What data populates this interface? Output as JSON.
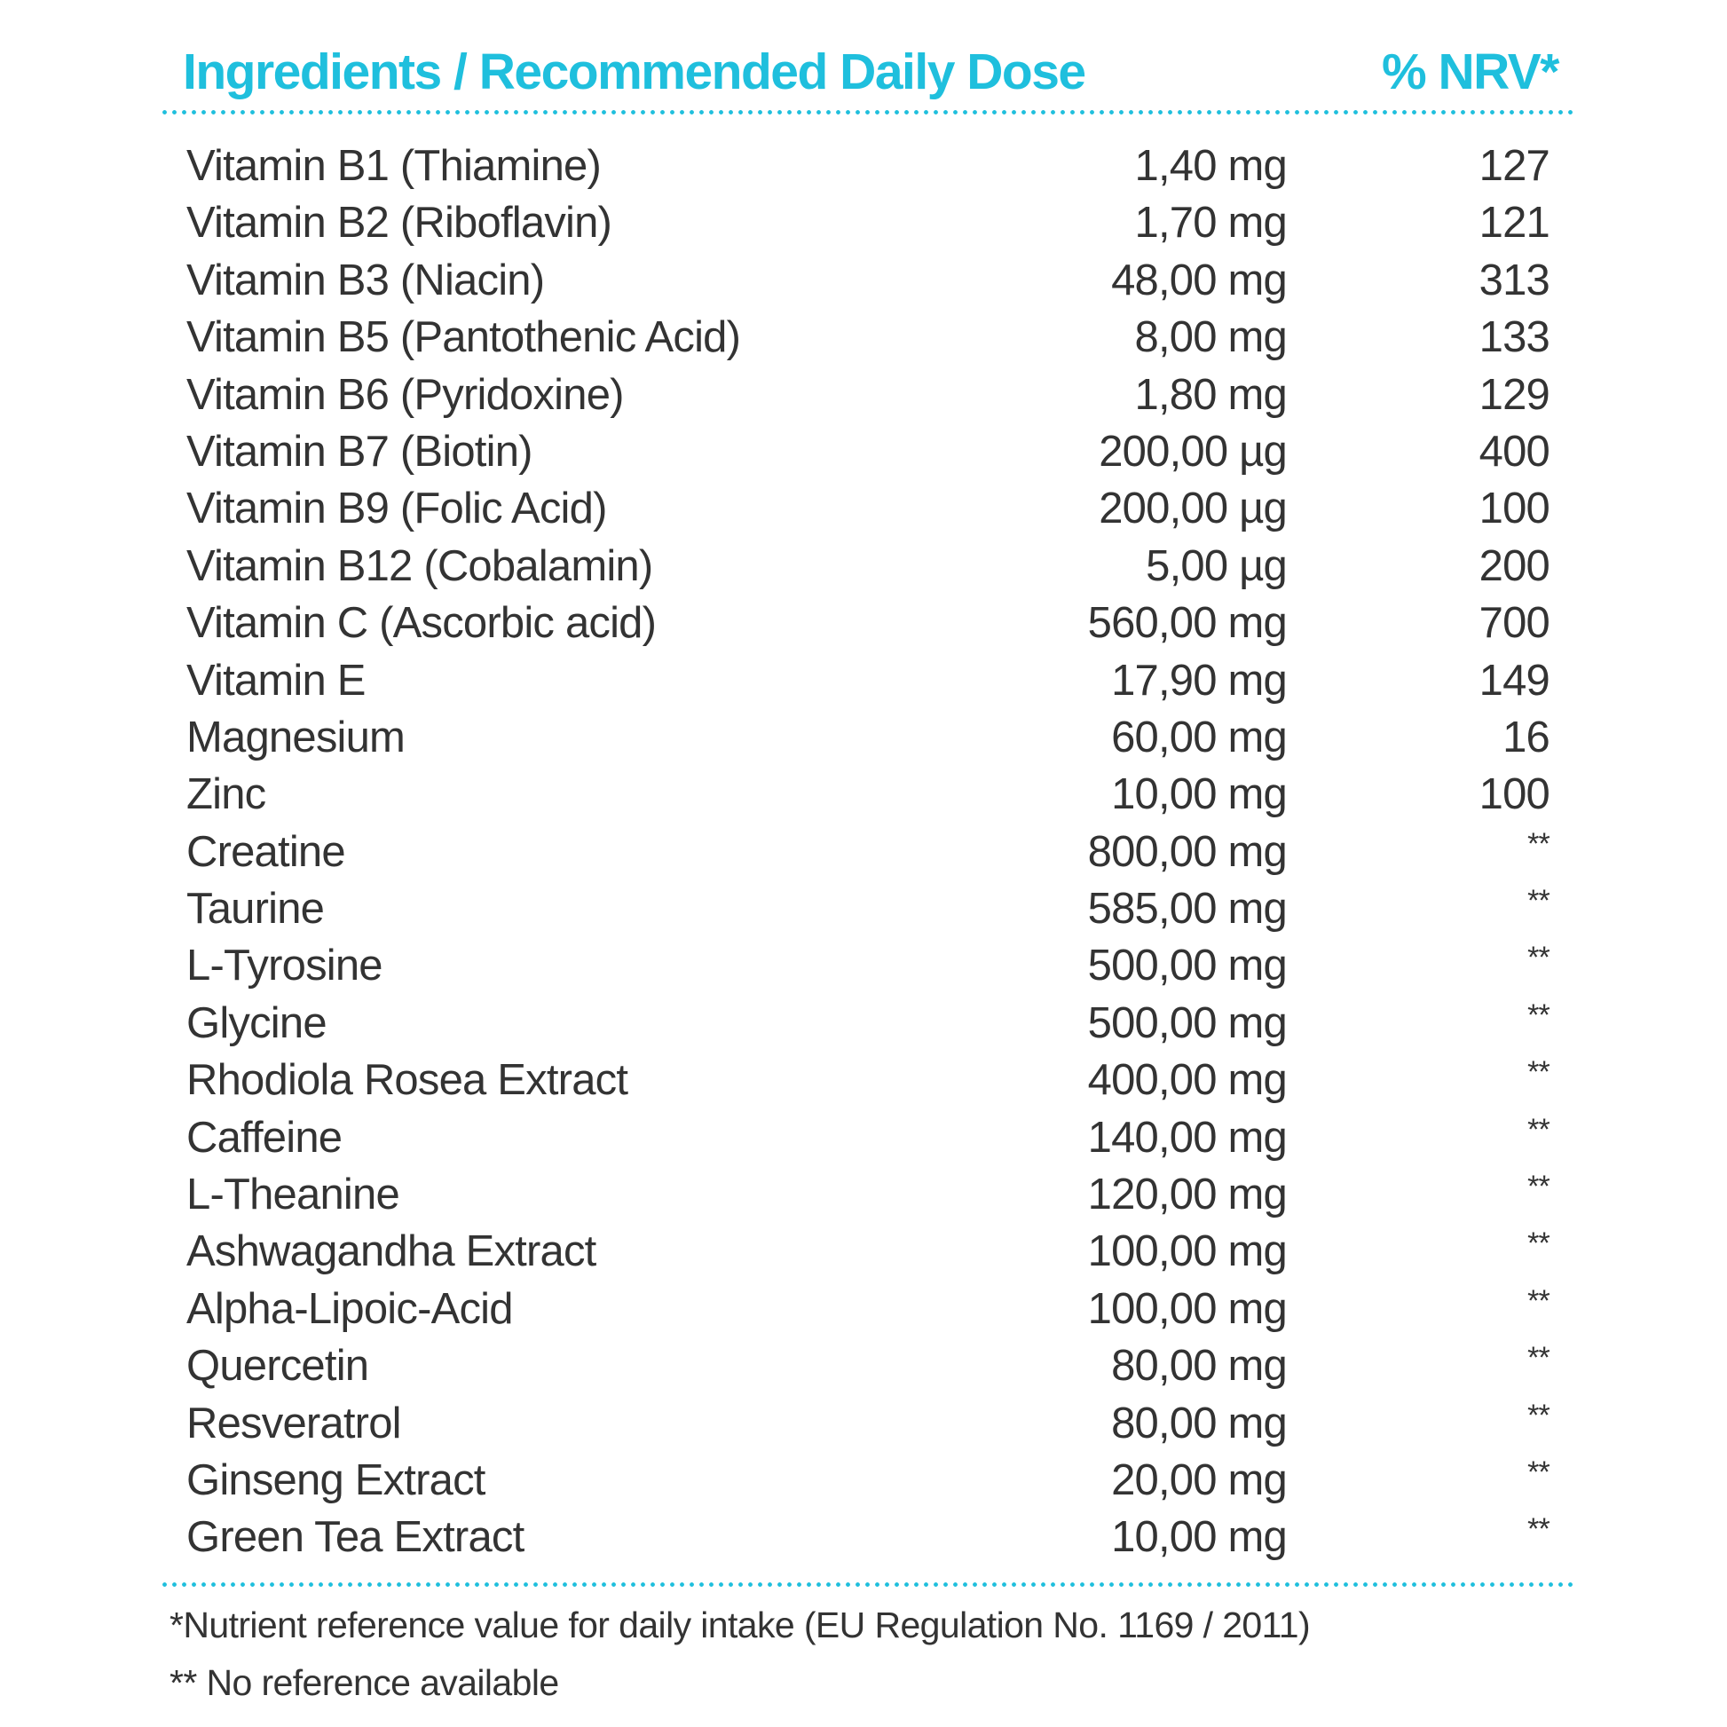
{
  "header": {
    "title": "Ingredients / Recommended Daily Dose",
    "nrv_label": "% NRV*"
  },
  "accent_color": "#1fbfdd",
  "rows": [
    {
      "name": "Vitamin B1 (Thiamine)",
      "dose": "1,40 mg",
      "nrv": "127"
    },
    {
      "name": "Vitamin B2 (Riboflavin)",
      "dose": "1,70 mg",
      "nrv": "121"
    },
    {
      "name": "Vitamin B3 (Niacin)",
      "dose": "48,00 mg",
      "nrv": "313"
    },
    {
      "name": "Vitamin B5 (Pantothenic Acid)",
      "dose": "8,00 mg",
      "nrv": "133"
    },
    {
      "name": "Vitamin B6 (Pyridoxine)",
      "dose": "1,80 mg",
      "nrv": "129"
    },
    {
      "name": "Vitamin B7 (Biotin)",
      "dose": "200,00 µg",
      "nrv": "400"
    },
    {
      "name": "Vitamin B9 (Folic Acid)",
      "dose": "200,00 µg",
      "nrv": "100"
    },
    {
      "name": "Vitamin B12 (Cobalamin)",
      "dose": "5,00 µg",
      "nrv": "200"
    },
    {
      "name": "Vitamin C (Ascorbic acid)",
      "dose": "560,00 mg",
      "nrv": "700"
    },
    {
      "name": "Vitamin E",
      "dose": "17,90 mg",
      "nrv": "149"
    },
    {
      "name": "Magnesium",
      "dose": "60,00 mg",
      "nrv": "16"
    },
    {
      "name": "Zinc",
      "dose": "10,00 mg",
      "nrv": "100"
    },
    {
      "name": "Creatine",
      "dose": "800,00 mg",
      "nrv": "**"
    },
    {
      "name": "Taurine",
      "dose": "585,00 mg",
      "nrv": "**"
    },
    {
      "name": "L-Tyrosine",
      "dose": "500,00 mg",
      "nrv": "**"
    },
    {
      "name": "Glycine",
      "dose": "500,00 mg",
      "nrv": "**"
    },
    {
      "name": "Rhodiola Rosea Extract",
      "dose": "400,00 mg",
      "nrv": "**"
    },
    {
      "name": "Caffeine",
      "dose": "140,00 mg",
      "nrv": "**"
    },
    {
      "name": "L-Theanine",
      "dose": "120,00 mg",
      "nrv": "**"
    },
    {
      "name": "Ashwagandha Extract",
      "dose": "100,00 mg",
      "nrv": "**"
    },
    {
      "name": "Alpha-Lipoic-Acid",
      "dose": "100,00 mg",
      "nrv": "**"
    },
    {
      "name": "Quercetin",
      "dose": "80,00 mg",
      "nrv": "**"
    },
    {
      "name": "Resveratrol",
      "dose": "80,00 mg",
      "nrv": "**"
    },
    {
      "name": "Ginseng Extract",
      "dose": "20,00 mg",
      "nrv": "**"
    },
    {
      "name": "Green Tea Extract",
      "dose": "10,00 mg",
      "nrv": "**"
    }
  ],
  "footnotes": {
    "nrv": "*Nutrient reference value for daily intake (EU Regulation No. 1169 / 2011)",
    "no_ref": "** No reference available"
  }
}
